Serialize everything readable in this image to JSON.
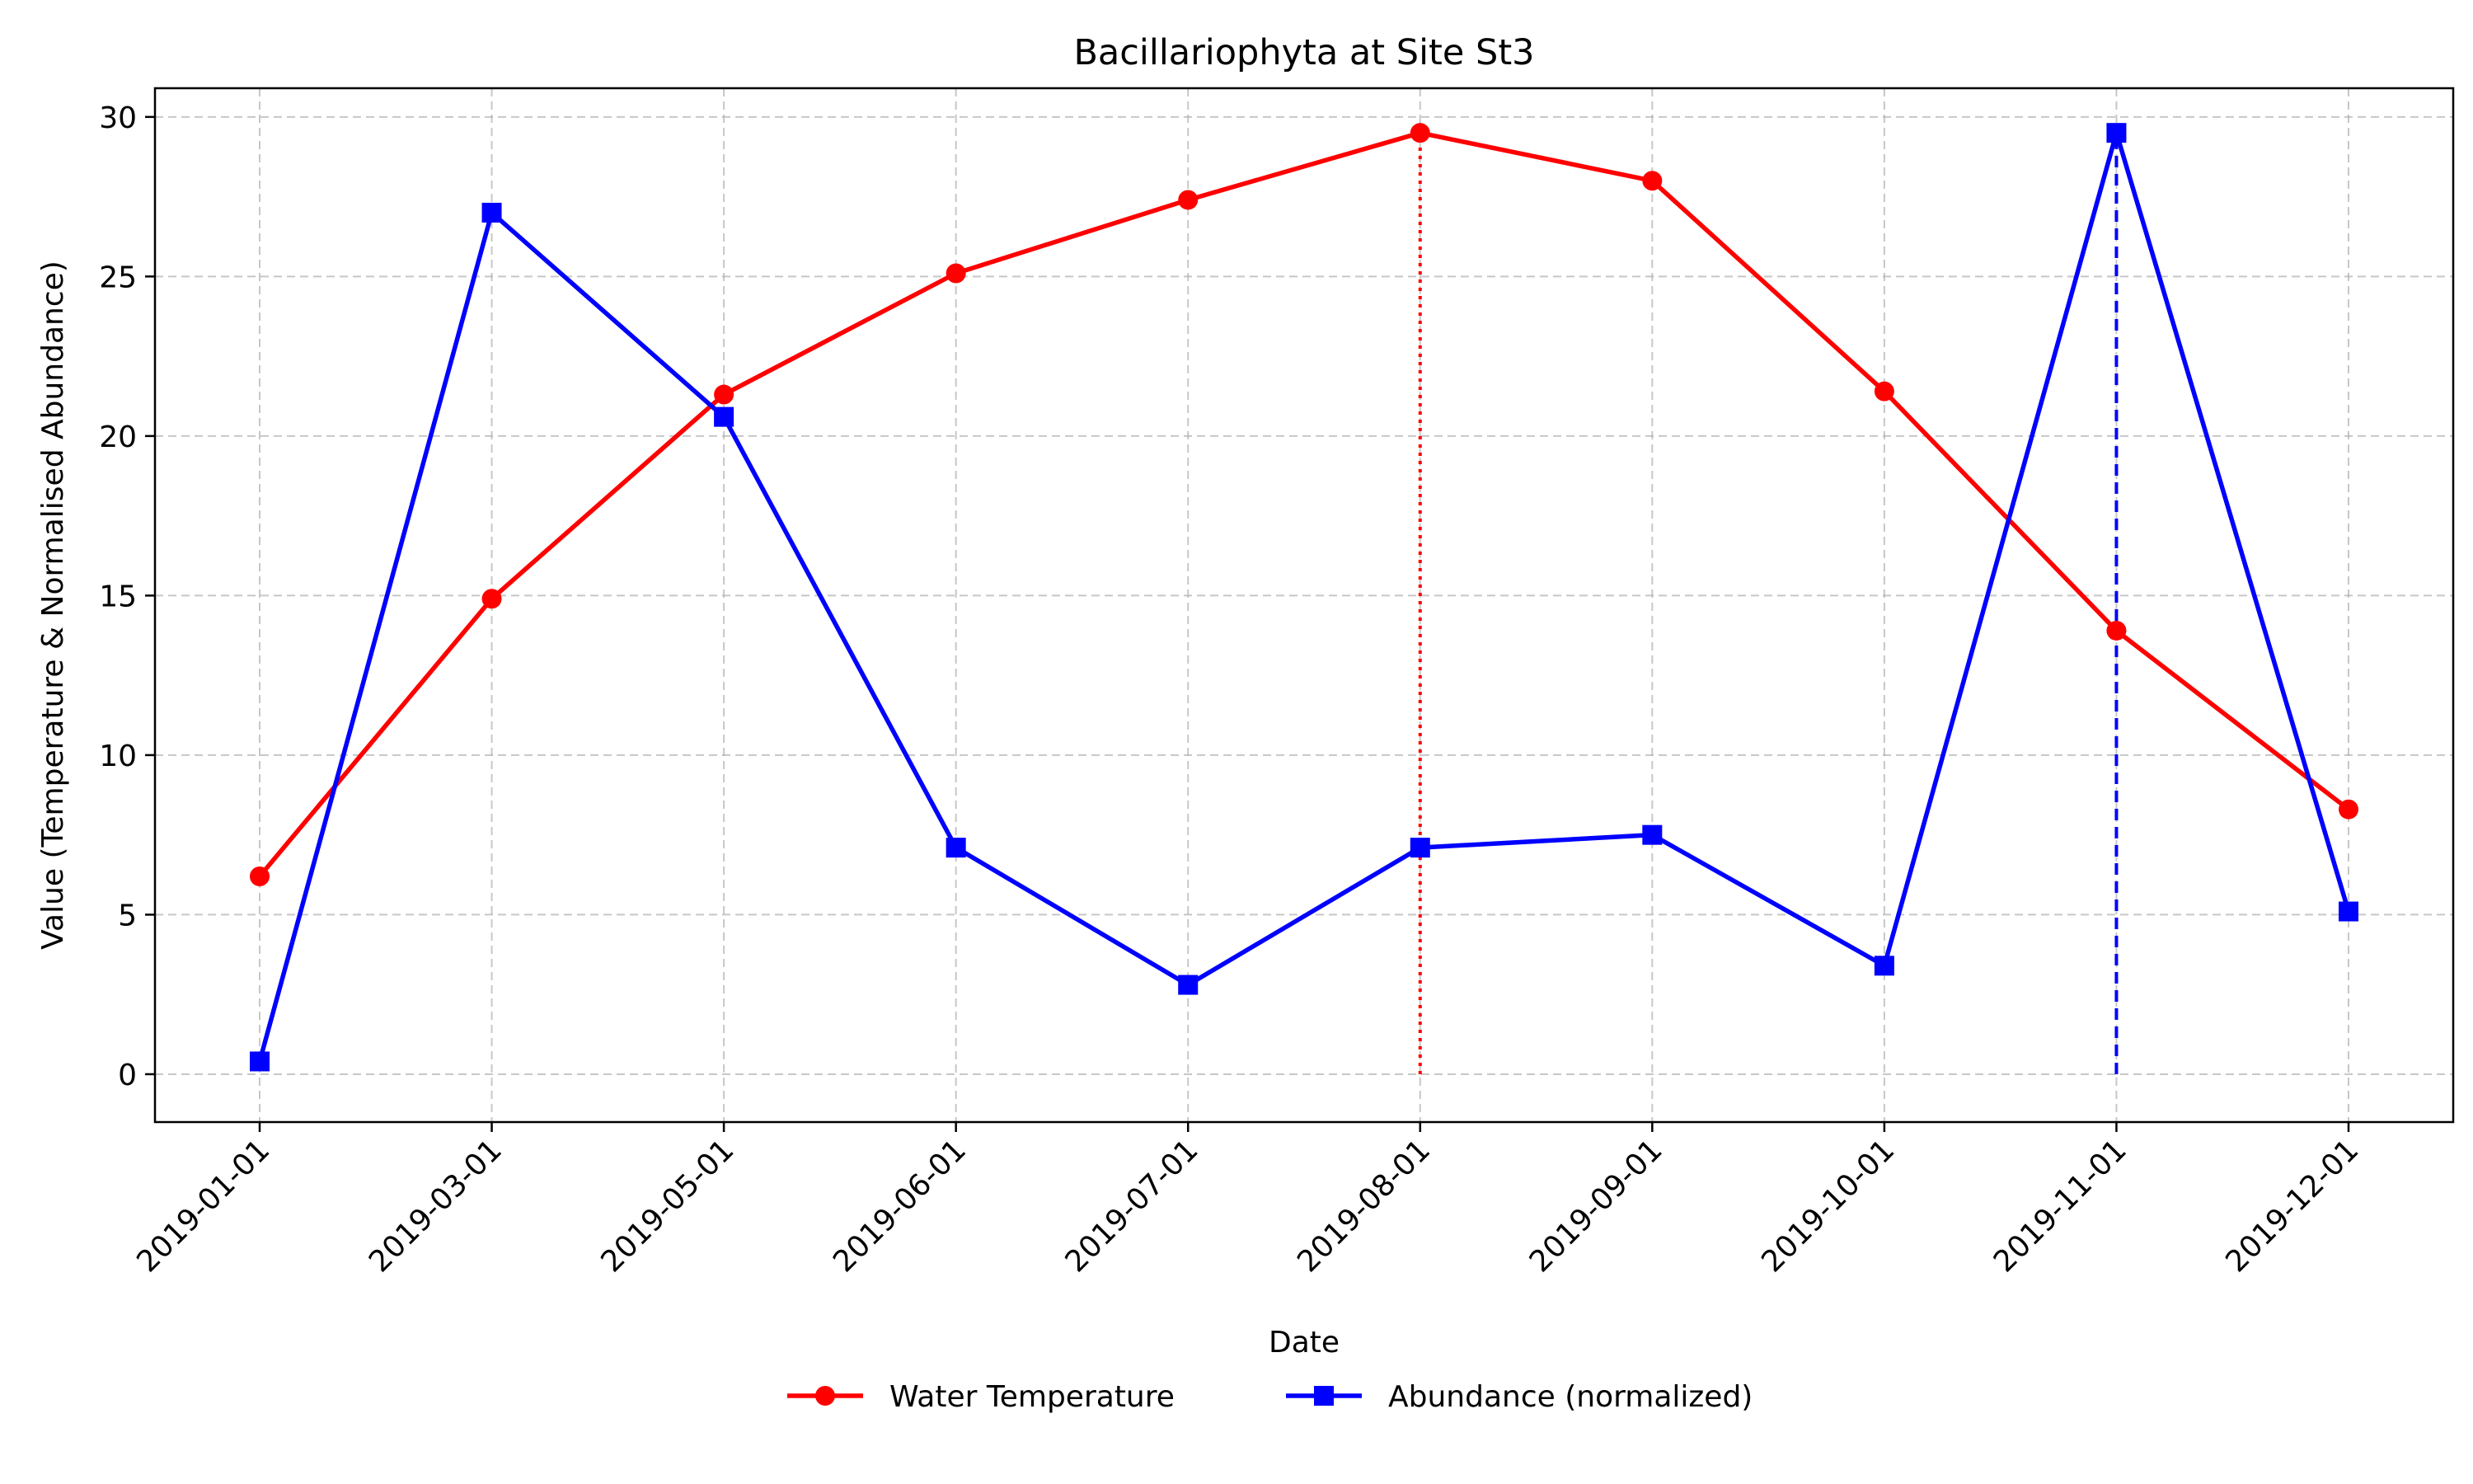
{
  "chart_data": {
    "type": "line",
    "title": "Bacillariophyta at Site St3",
    "xlabel": "Date",
    "ylabel": "Value (Temperature & Normalised Abundance)",
    "categories": [
      "2019-01-01",
      "2019-03-01",
      "2019-05-01",
      "2019-06-01",
      "2019-07-01",
      "2019-08-01",
      "2019-09-01",
      "2019-10-01",
      "2019-11-01",
      "2019-12-01"
    ],
    "ylim": [
      -1.5,
      30.9
    ],
    "yticks": [
      0,
      5,
      10,
      15,
      20,
      25,
      30
    ],
    "grid": true,
    "legend_position": "bottom-center",
    "series": [
      {
        "name": "Water Temperature",
        "color": "#ff0000",
        "marker": "circle",
        "values": [
          6.2,
          14.9,
          21.3,
          25.1,
          27.4,
          29.5,
          28.0,
          21.4,
          13.9,
          8.3
        ]
      },
      {
        "name": "Abundance (normalized)",
        "color": "#0000ff",
        "marker": "square",
        "values": [
          0.4,
          27.0,
          20.6,
          7.1,
          2.8,
          7.1,
          7.5,
          3.4,
          29.5,
          5.1
        ]
      }
    ],
    "annotations": [
      {
        "type": "vline",
        "category": "2019-08-01",
        "from": 0,
        "to": 29.5,
        "color": "#ff0000",
        "style": "dotted"
      },
      {
        "type": "vline",
        "category": "2019-11-01",
        "from": 0,
        "to": 29.5,
        "color": "#0000ff",
        "style": "dashed"
      }
    ]
  }
}
